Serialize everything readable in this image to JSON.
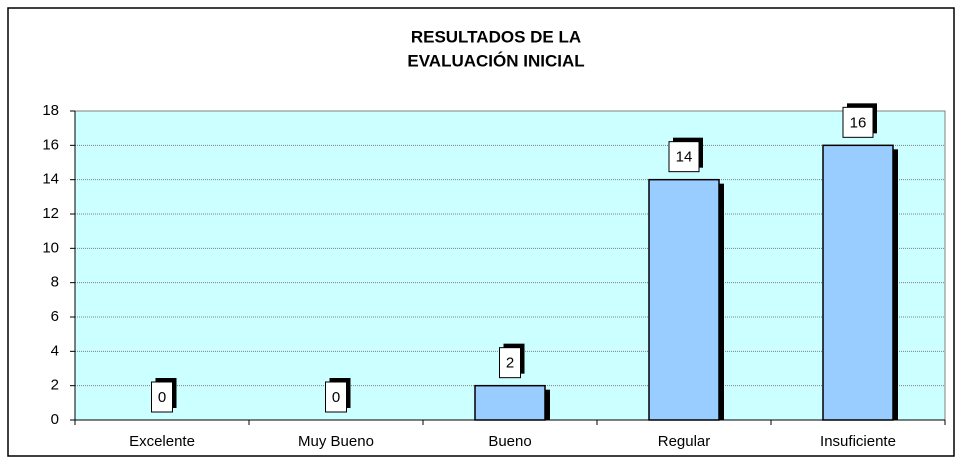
{
  "chart_data": {
    "type": "bar",
    "title": [
      "RESULTADOS DE LA",
      "EVALUACIÓN INICIAL"
    ],
    "categories": [
      "Excelente",
      "Muy Bueno",
      "Bueno",
      "Regular",
      "Insuficiente"
    ],
    "values": [
      0,
      0,
      2,
      14,
      16
    ],
    "color": "#99ccff",
    "ylim": [
      0,
      18
    ],
    "yticks": [
      0,
      2,
      4,
      6,
      8,
      10,
      12,
      14,
      16,
      18
    ],
    "grid": true
  }
}
